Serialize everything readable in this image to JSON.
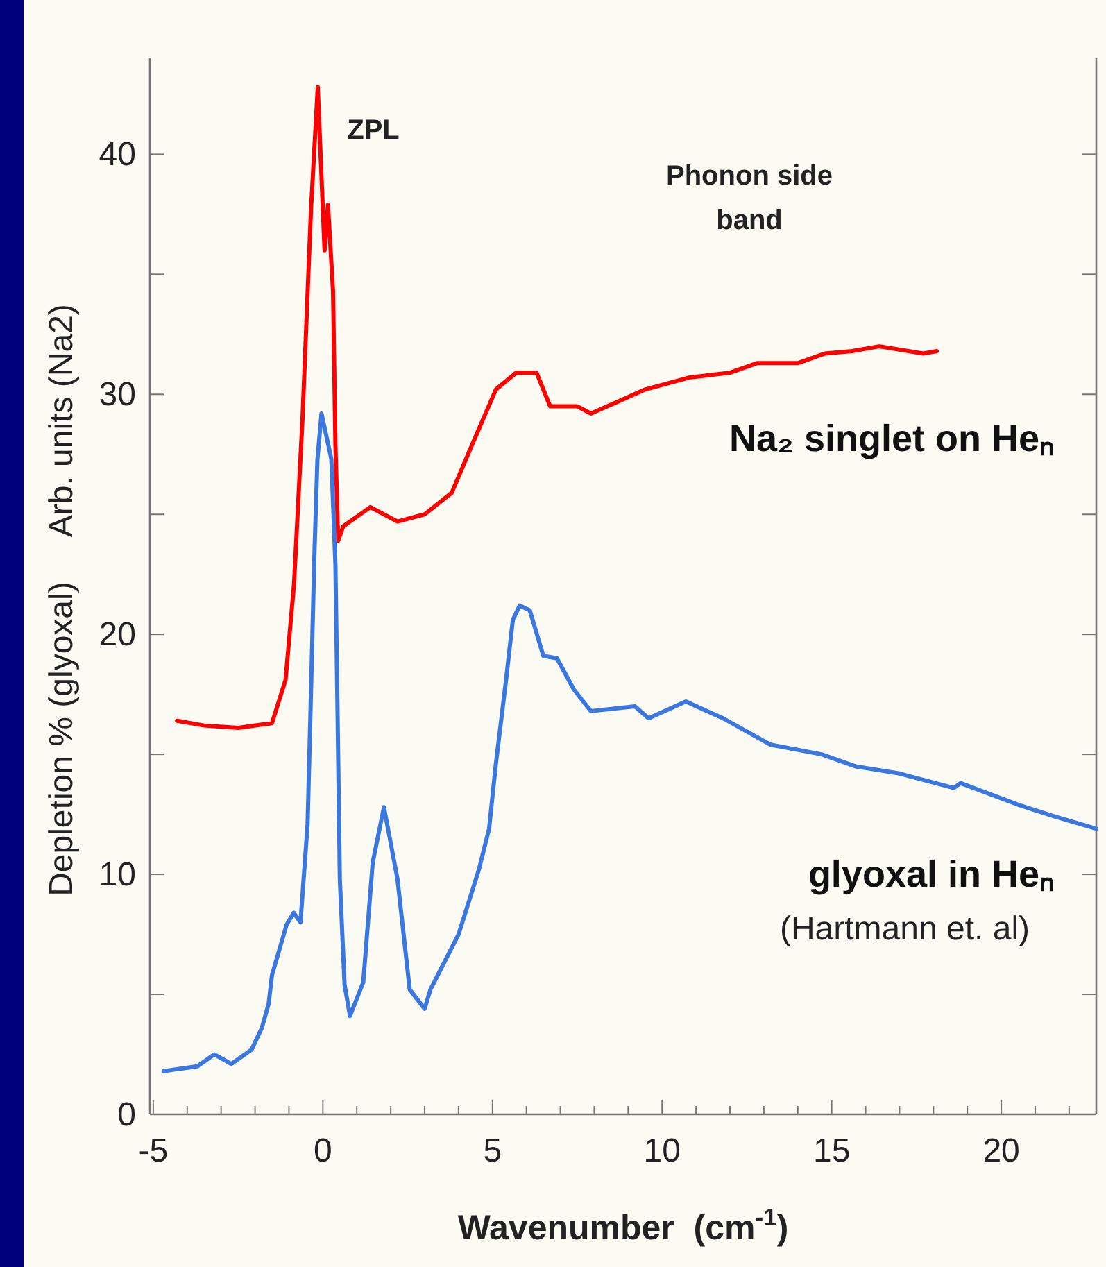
{
  "chart_data": {
    "type": "line",
    "xlabel": "Wavenumber  (cm$^{-1}$)",
    "ylabel": "Depletion % (glyoxal)     Arb. units (Na2)",
    "xlim": [
      -5.1,
      22.8
    ],
    "ylim": [
      0,
      44
    ],
    "xticks": [
      -5,
      {
        "value": -4,
        "label": null
      },
      {
        "value": -3,
        "label": null
      },
      {
        "value": -2,
        "label": null
      },
      {
        "value": -1,
        "label": null
      },
      0,
      {
        "value": 1,
        "label": null
      },
      {
        "value": 2,
        "label": null
      },
      {
        "value": 3,
        "label": null
      },
      {
        "value": 4,
        "label": null
      },
      5,
      {
        "value": 6,
        "label": null
      },
      {
        "value": 7,
        "label": null
      },
      {
        "value": 8,
        "label": null
      },
      {
        "value": 9,
        "label": null
      },
      10,
      {
        "value": 11,
        "label": null
      },
      {
        "value": 12,
        "label": null
      },
      {
        "value": 13,
        "label": null
      },
      {
        "value": 14,
        "label": null
      },
      15,
      {
        "value": 16,
        "label": null
      },
      {
        "value": 17,
        "label": null
      },
      {
        "value": 18,
        "label": null
      },
      {
        "value": 19,
        "label": null
      },
      20,
      {
        "value": 21,
        "label": null
      },
      {
        "value": 22,
        "label": null
      }
    ],
    "yticks": [
      0,
      {
        "value": 5,
        "label": null
      },
      10,
      {
        "value": 15,
        "label": null
      },
      20,
      {
        "value": 25,
        "label": null
      },
      30,
      {
        "value": 35,
        "label": null
      },
      40
    ],
    "grid": false,
    "series": [
      {
        "name": "Na₂ singlet on Heₙ",
        "color": "#ff0000",
        "x": [
          -4.3,
          -3.5,
          -2.5,
          -1.5,
          -1.1,
          -0.85,
          -0.6,
          -0.35,
          -0.15,
          0.05,
          0.15,
          0.3,
          0.37,
          0.45,
          0.6,
          1.4,
          2.2,
          3.0,
          3.8,
          4.4,
          5.1,
          5.7,
          6.3,
          6.7,
          7.5,
          7.9,
          8.7,
          9.5,
          10.8,
          12.0,
          12.8,
          14.0,
          14.8,
          15.6,
          16.4,
          17.7,
          18.1
        ],
        "values": [
          16.4,
          16.2,
          16.1,
          16.3,
          18.1,
          22.1,
          29.0,
          37.7,
          42.8,
          36.0,
          37.9,
          34.3,
          27.9,
          23.9,
          24.5,
          25.3,
          24.7,
          25.0,
          25.9,
          27.9,
          30.2,
          30.9,
          30.9,
          29.5,
          29.5,
          29.2,
          29.7,
          30.2,
          30.7,
          30.9,
          31.3,
          31.3,
          31.7,
          31.8,
          32.0,
          31.7,
          31.8
        ]
      },
      {
        "name": "glyoxal in Heₙ",
        "color": "#3a78e0",
        "x": [
          -4.7,
          -3.7,
          -3.2,
          -2.7,
          -2.1,
          -1.8,
          -1.6,
          -1.5,
          -1.07,
          -0.86,
          -0.66,
          -0.45,
          -0.37,
          -0.25,
          -0.16,
          -0.04,
          0.25,
          0.37,
          0.45,
          0.5,
          0.64,
          0.8,
          1.19,
          1.47,
          1.8,
          2.2,
          2.56,
          3.0,
          3.17,
          4.0,
          4.6,
          4.9,
          5.1,
          5.4,
          5.6,
          5.8,
          6.1,
          6.5,
          6.9,
          7.4,
          7.9,
          9.2,
          9.6,
          10.7,
          11.8,
          13.2,
          14.7,
          15.7,
          17.0,
          18.6,
          18.8,
          20.5,
          21.6,
          22.8
        ],
        "values": [
          1.8,
          2.0,
          2.5,
          2.1,
          2.7,
          3.6,
          4.6,
          5.8,
          7.9,
          8.4,
          8.0,
          12.1,
          16.5,
          23.3,
          27.3,
          29.2,
          27.3,
          22.9,
          15.0,
          9.8,
          5.4,
          4.1,
          5.5,
          10.5,
          12.8,
          9.8,
          5.2,
          4.4,
          5.2,
          7.5,
          10.2,
          11.9,
          14.6,
          18.1,
          20.6,
          21.2,
          21.0,
          19.1,
          19.0,
          17.7,
          16.8,
          17.0,
          16.5,
          17.2,
          16.5,
          15.4,
          15.0,
          14.5,
          14.2,
          13.6,
          13.8,
          12.9,
          12.4,
          11.9
        ]
      }
    ],
    "annotations": [
      "ZPL",
      "Phonon side band",
      "(Hartmann et. al)"
    ]
  }
}
